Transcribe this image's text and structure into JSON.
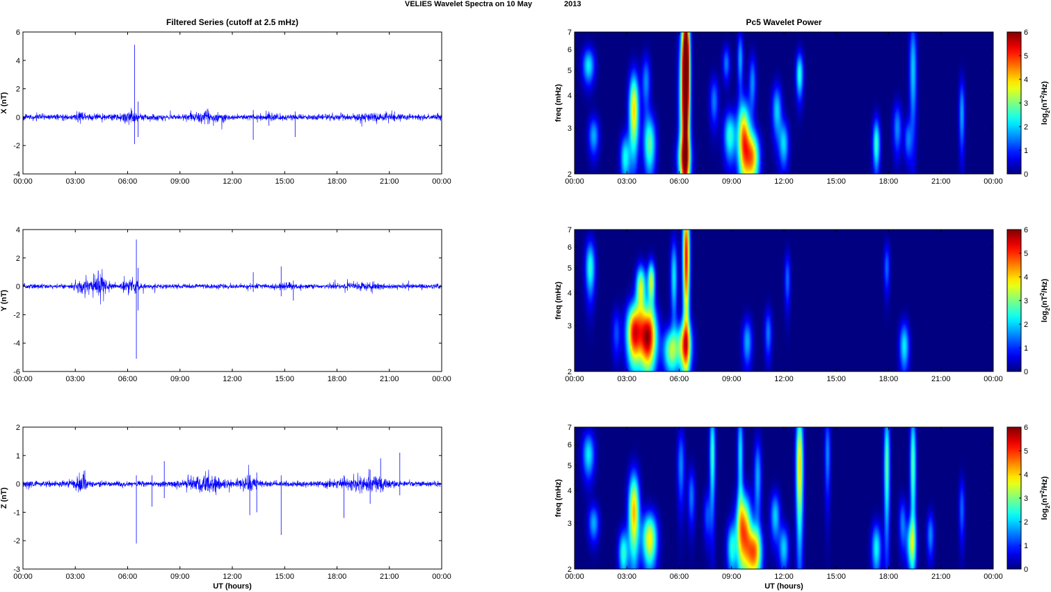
{
  "figure": {
    "suptitle_left": "VELIES Wavelet Spectra on 10 May",
    "suptitle_right": "2013"
  },
  "chart_data": [
    {
      "type": "line",
      "panel": "X",
      "title": "Filtered Series (cutoff at 2.5 mHz)",
      "xlabel": "",
      "ylabel": "X (nT)",
      "xlim": [
        0,
        24
      ],
      "ylim": [
        -4,
        6
      ],
      "yticks": [
        "-4",
        "-2",
        "0",
        "2",
        "4",
        "6"
      ],
      "xticks": [
        "00:00",
        "03:00",
        "06:00",
        "09:00",
        "12:00",
        "15:00",
        "18:00",
        "21:00",
        "00:00"
      ],
      "color": "#0000ff",
      "noise": 0.18,
      "bursts": [
        [
          3.3,
          0.2,
          0.35
        ],
        [
          6.1,
          0.5,
          0.3
        ],
        [
          10.5,
          0.7,
          0.25
        ],
        [
          14.5,
          0.6,
          0.12
        ],
        [
          20.2,
          1.2,
          0.12
        ]
      ],
      "spikes": [
        [
          6.4,
          5.1,
          -1.9
        ],
        [
          6.6,
          1.1,
          -1.4
        ],
        [
          13.2,
          0.5,
          -1.6
        ],
        [
          15.6,
          0.4,
          -1.4
        ],
        [
          14.1,
          0.4,
          -0.6
        ],
        [
          21.3,
          0.4,
          -0.3
        ],
        [
          10.6,
          0.6,
          -0.5
        ]
      ]
    },
    {
      "type": "line",
      "panel": "Y",
      "title": "",
      "xlabel": "",
      "ylabel": "Y (nT)",
      "xlim": [
        0,
        24
      ],
      "ylim": [
        -6,
        4
      ],
      "yticks": [
        "-6",
        "-4",
        "-2",
        "0",
        "2",
        "4"
      ],
      "xticks": [
        "00:00",
        "03:00",
        "06:00",
        "09:00",
        "12:00",
        "15:00",
        "18:00",
        "21:00",
        "00:00"
      ],
      "color": "#0000ff",
      "noise": 0.15,
      "bursts": [
        [
          3.6,
          0.6,
          0.4
        ],
        [
          4.5,
          0.35,
          0.7
        ],
        [
          6.2,
          0.5,
          0.35
        ],
        [
          15.0,
          0.6,
          0.12
        ],
        [
          19.5,
          1.0,
          0.12
        ]
      ],
      "spikes": [
        [
          6.5,
          3.3,
          -5.1
        ],
        [
          6.6,
          1.3,
          -1.7
        ],
        [
          13.2,
          1.0,
          -0.4
        ],
        [
          14.8,
          1.4,
          -0.7
        ],
        [
          15.5,
          0.4,
          -1.0
        ],
        [
          18.6,
          0.5,
          -0.3
        ],
        [
          22.1,
          0.4,
          -0.3
        ]
      ]
    },
    {
      "type": "line",
      "panel": "Z",
      "title": "",
      "xlabel": "UT (hours)",
      "ylabel": "Z (nT)",
      "xlim": [
        0,
        24
      ],
      "ylim": [
        -3,
        2
      ],
      "yticks": [
        "-3",
        "-2",
        "-1",
        "0",
        "1",
        "2"
      ],
      "xticks": [
        "00:00",
        "03:00",
        "06:00",
        "09:00",
        "12:00",
        "15:00",
        "18:00",
        "21:00",
        "00:00"
      ],
      "color": "#0000ff",
      "noise": 0.09,
      "bursts": [
        [
          3.3,
          0.35,
          0.3
        ],
        [
          10.4,
          1.0,
          0.25
        ],
        [
          13.0,
          0.6,
          0.15
        ],
        [
          19.5,
          1.3,
          0.2
        ]
      ],
      "spikes": [
        [
          6.5,
          0.3,
          -2.1
        ],
        [
          8.1,
          0.8,
          -0.5
        ],
        [
          13.0,
          0.3,
          -1.1
        ],
        [
          13.4,
          0.4,
          -1.0
        ],
        [
          14.8,
          0.3,
          -1.8
        ],
        [
          18.4,
          0.3,
          -1.2
        ],
        [
          19.9,
          0.5,
          -0.7
        ],
        [
          21.6,
          1.1,
          -0.4
        ],
        [
          20.5,
          0.9,
          -0.3
        ],
        [
          7.4,
          0.3,
          -0.8
        ]
      ]
    },
    {
      "type": "heatmap",
      "panel": "X",
      "title": "Pc5 Wavelet Power",
      "xlabel": "",
      "ylabel": "freq (mHz)",
      "xlim": [
        0,
        24
      ],
      "ylim": [
        2,
        7
      ],
      "yscale": "log",
      "yticks": [
        "2",
        "3",
        "4",
        "5",
        "6",
        "7"
      ],
      "xticks": [
        "00:00",
        "03:00",
        "06:00",
        "09:00",
        "12:00",
        "15:00",
        "18:00",
        "21:00",
        "00:00"
      ],
      "colorbar": {
        "label_main": "log",
        "label_sub": "2",
        "label_rest": "(nT",
        "label_sup": "2",
        "label_end": "/Hz)",
        "range": [
          0,
          6
        ],
        "ticks": [
          "0",
          "1",
          "2",
          "3",
          "4",
          "5",
          "6"
        ]
      },
      "blobs": [
        [
          0.8,
          0.25,
          5.2,
          0.6,
          2.2
        ],
        [
          1.1,
          0.22,
          2.8,
          0.35,
          1.8
        ],
        [
          2.9,
          0.2,
          2.3,
          0.35,
          2.3
        ],
        [
          3.4,
          0.2,
          3.5,
          0.9,
          4.0
        ],
        [
          4.3,
          0.25,
          2.6,
          0.5,
          2.8
        ],
        [
          4.1,
          0.18,
          4.5,
          0.8,
          1.6
        ],
        [
          6.3,
          0.2,
          3.8,
          2.5,
          4.5
        ],
        [
          6.4,
          0.14,
          5.5,
          2.0,
          5.5
        ],
        [
          6.3,
          0.3,
          2.3,
          0.3,
          2.0
        ],
        [
          8.0,
          0.18,
          3.8,
          0.6,
          1.5
        ],
        [
          8.7,
          0.15,
          5.3,
          0.6,
          1.5
        ],
        [
          8.9,
          0.25,
          2.8,
          0.45,
          2.5
        ],
        [
          9.7,
          0.25,
          2.7,
          0.7,
          4.5
        ],
        [
          10.2,
          0.28,
          2.3,
          0.4,
          4.0
        ],
        [
          9.5,
          0.12,
          5.5,
          1.0,
          1.8
        ],
        [
          10.2,
          0.15,
          4.5,
          0.8,
          1.6
        ],
        [
          11.6,
          0.2,
          3.5,
          0.6,
          2.0
        ],
        [
          12.0,
          0.2,
          2.6,
          0.4,
          2.0
        ],
        [
          12.9,
          0.15,
          4.8,
          0.7,
          2.5
        ],
        [
          17.3,
          0.15,
          2.6,
          0.45,
          2.6
        ],
        [
          18.5,
          0.18,
          3.0,
          0.5,
          1.6
        ],
        [
          19.4,
          0.15,
          5.0,
          1.8,
          2.0
        ],
        [
          19.1,
          0.15,
          2.7,
          0.35,
          1.4
        ],
        [
          22.2,
          0.12,
          3.4,
          0.8,
          1.8
        ]
      ]
    },
    {
      "type": "heatmap",
      "panel": "Y",
      "title": "",
      "xlabel": "",
      "ylabel": "freq (mHz)",
      "xlim": [
        0,
        24
      ],
      "ylim": [
        2,
        7
      ],
      "yscale": "log",
      "yticks": [
        "2",
        "3",
        "4",
        "5",
        "6",
        "7"
      ],
      "xticks": [
        "00:00",
        "03:00",
        "06:00",
        "09:00",
        "12:00",
        "15:00",
        "18:00",
        "21:00",
        "00:00"
      ],
      "colorbar": {
        "label_main": "log",
        "label_sub": "2",
        "label_rest": "(nT",
        "label_sup": "2",
        "label_end": "/Hz)",
        "range": [
          0,
          6
        ],
        "ticks": [
          "0",
          "1",
          "2",
          "3",
          "4",
          "5",
          "6"
        ]
      },
      "blobs": [
        [
          0.9,
          0.2,
          5.0,
          0.9,
          2.5
        ],
        [
          2.4,
          0.18,
          2.8,
          0.45,
          1.2
        ],
        [
          3.4,
          0.3,
          2.8,
          0.55,
          5.0
        ],
        [
          4.2,
          0.35,
          2.7,
          0.55,
          5.8
        ],
        [
          3.8,
          0.2,
          4.2,
          0.6,
          3.5
        ],
        [
          4.4,
          0.15,
          4.4,
          0.6,
          3.5
        ],
        [
          5.5,
          0.3,
          2.4,
          0.35,
          3.0
        ],
        [
          6.3,
          0.3,
          2.5,
          0.4,
          3.8
        ],
        [
          6.4,
          0.14,
          5.5,
          2.2,
          5.3
        ],
        [
          5.7,
          0.14,
          4.6,
          1.2,
          2.2
        ],
        [
          9.9,
          0.2,
          2.6,
          0.4,
          1.8
        ],
        [
          11.1,
          0.15,
          2.8,
          0.45,
          1.5
        ],
        [
          12.2,
          0.12,
          4.5,
          0.8,
          1.4
        ],
        [
          18.9,
          0.2,
          2.5,
          0.4,
          2.2
        ],
        [
          17.9,
          0.12,
          5.0,
          0.8,
          1.4
        ]
      ]
    },
    {
      "type": "heatmap",
      "panel": "Z",
      "title": "",
      "xlabel": "UT (hours)",
      "ylabel": "freq (mHz)",
      "xlim": [
        0,
        24
      ],
      "ylim": [
        2,
        7
      ],
      "yscale": "log",
      "yticks": [
        "2",
        "3",
        "4",
        "5",
        "6",
        "7"
      ],
      "xticks": [
        "00:00",
        "03:00",
        "06:00",
        "09:00",
        "12:00",
        "15:00",
        "18:00",
        "21:00",
        "00:00"
      ],
      "colorbar": {
        "label_main": "log",
        "label_sub": "2",
        "label_rest": "(nT",
        "label_sup": "2",
        "label_end": "/Hz)",
        "range": [
          0,
          6
        ],
        "ticks": [
          "0",
          "1",
          "2",
          "3",
          "4",
          "5",
          "6"
        ]
      },
      "blobs": [
        [
          0.8,
          0.25,
          5.5,
          0.8,
          2.2
        ],
        [
          1.1,
          0.22,
          3.0,
          0.35,
          1.8
        ],
        [
          2.8,
          0.2,
          2.3,
          0.35,
          2.5
        ],
        [
          3.4,
          0.22,
          3.3,
          0.9,
          4.2
        ],
        [
          4.3,
          0.3,
          2.6,
          0.45,
          3.8
        ],
        [
          6.1,
          0.15,
          5.0,
          1.2,
          1.6
        ],
        [
          6.7,
          0.15,
          3.8,
          0.7,
          1.5
        ],
        [
          7.6,
          0.15,
          3.2,
          0.5,
          1.2
        ],
        [
          7.9,
          0.12,
          5.5,
          1.8,
          2.6
        ],
        [
          9.0,
          0.2,
          2.4,
          0.4,
          2.2
        ],
        [
          9.7,
          0.3,
          2.8,
          0.7,
          4.5
        ],
        [
          10.3,
          0.3,
          2.3,
          0.4,
          4.2
        ],
        [
          9.5,
          0.12,
          5.5,
          1.8,
          2.2
        ],
        [
          10.5,
          0.15,
          4.5,
          1.2,
          1.8
        ],
        [
          11.5,
          0.2,
          3.2,
          0.5,
          2.0
        ],
        [
          12.0,
          0.2,
          2.4,
          0.35,
          2.0
        ],
        [
          12.9,
          0.15,
          5.0,
          2.0,
          4.0
        ],
        [
          14.5,
          0.12,
          5.5,
          1.5,
          1.6
        ],
        [
          17.3,
          0.2,
          2.4,
          0.4,
          2.3
        ],
        [
          17.9,
          0.12,
          5.0,
          2.0,
          2.8
        ],
        [
          18.8,
          0.15,
          3.0,
          0.5,
          1.5
        ],
        [
          19.3,
          0.2,
          2.5,
          0.4,
          2.6
        ],
        [
          19.4,
          0.12,
          5.0,
          2.0,
          2.8
        ],
        [
          20.4,
          0.15,
          2.7,
          0.4,
          1.6
        ],
        [
          22.2,
          0.12,
          3.4,
          0.7,
          1.4
        ]
      ]
    }
  ]
}
